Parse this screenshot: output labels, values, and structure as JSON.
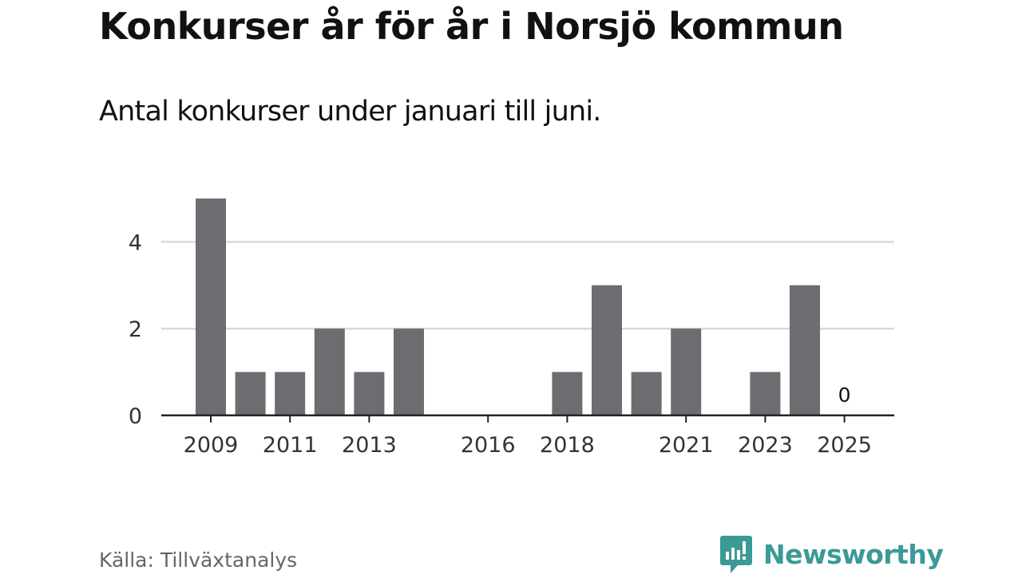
{
  "title": "Konkurser år för år i Norsjö kommun",
  "subtitle": "Antal konkurser under januari till juni.",
  "source": "Källa: Tillväxtanalys",
  "brand": {
    "name": "Newsworthy",
    "color": "#3b9a96",
    "icon": "newsworthy-logo-icon"
  },
  "colors": {
    "bar": "#6d6c71",
    "grid": "#d9d9d9",
    "axis": "#222222"
  },
  "chart_data": {
    "type": "bar",
    "categories": [
      "2009",
      "2010",
      "2011",
      "2012",
      "2013",
      "2014",
      "2015",
      "2016",
      "2017",
      "2018",
      "2019",
      "2020",
      "2021",
      "2022",
      "2023",
      "2024",
      "2025"
    ],
    "values": [
      5,
      1,
      1,
      2,
      1,
      2,
      0,
      0,
      0,
      1,
      3,
      1,
      2,
      0,
      1,
      3,
      0
    ],
    "x_tick_labels": [
      "2009",
      "2011",
      "2013",
      "2016",
      "2018",
      "2021",
      "2023",
      "2025"
    ],
    "y_ticks": [
      0,
      2,
      4
    ],
    "ylim": [
      0,
      5
    ],
    "xlabel": "",
    "ylabel": "",
    "grid": true,
    "annotations": [
      {
        "category": "2025",
        "text": "0"
      }
    ]
  }
}
